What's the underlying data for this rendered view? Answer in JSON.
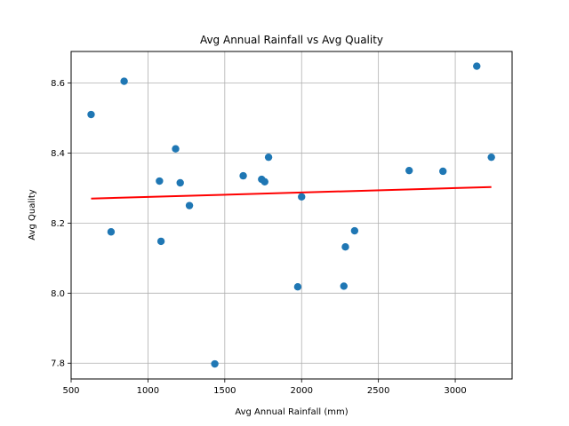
{
  "chart_data": {
    "type": "scatter",
    "title": "Avg Annual Rainfall vs Avg Quality",
    "xlabel": "Avg Annual Rainfall (mm)",
    "ylabel": "Avg Quality",
    "xlim": [
      500,
      3370
    ],
    "ylim": [
      7.755,
      8.69
    ],
    "xticks": [
      500,
      1000,
      1500,
      2000,
      2500,
      3000
    ],
    "yticks": [
      7.8,
      8.0,
      8.2,
      8.4,
      8.6
    ],
    "xtick_labels": [
      "500",
      "1000",
      "1500",
      "2000",
      "2500",
      "3000"
    ],
    "ytick_labels": [
      "7.8",
      "8.0",
      "8.2",
      "8.4",
      "8.6"
    ],
    "grid": true,
    "series": [
      {
        "type": "scatter",
        "color": "#1f77b4",
        "points": [
          {
            "x": 630,
            "y": 8.51
          },
          {
            "x": 760,
            "y": 8.175
          },
          {
            "x": 845,
            "y": 8.605
          },
          {
            "x": 1075,
            "y": 8.32
          },
          {
            "x": 1085,
            "y": 8.148
          },
          {
            "x": 1180,
            "y": 8.412
          },
          {
            "x": 1210,
            "y": 8.315
          },
          {
            "x": 1270,
            "y": 8.25
          },
          {
            "x": 1435,
            "y": 7.798
          },
          {
            "x": 1620,
            "y": 8.335
          },
          {
            "x": 1740,
            "y": 8.325
          },
          {
            "x": 1760,
            "y": 8.318
          },
          {
            "x": 1785,
            "y": 8.388
          },
          {
            "x": 1975,
            "y": 8.018
          },
          {
            "x": 2000,
            "y": 8.275
          },
          {
            "x": 2275,
            "y": 8.02
          },
          {
            "x": 2285,
            "y": 8.132
          },
          {
            "x": 2345,
            "y": 8.178
          },
          {
            "x": 2700,
            "y": 8.35
          },
          {
            "x": 2920,
            "y": 8.348
          },
          {
            "x": 3140,
            "y": 8.648
          },
          {
            "x": 3235,
            "y": 8.388
          }
        ]
      },
      {
        "type": "line",
        "color": "#ff0000",
        "points": [
          {
            "x": 630,
            "y": 8.27
          },
          {
            "x": 3235,
            "y": 8.303
          }
        ]
      }
    ]
  }
}
